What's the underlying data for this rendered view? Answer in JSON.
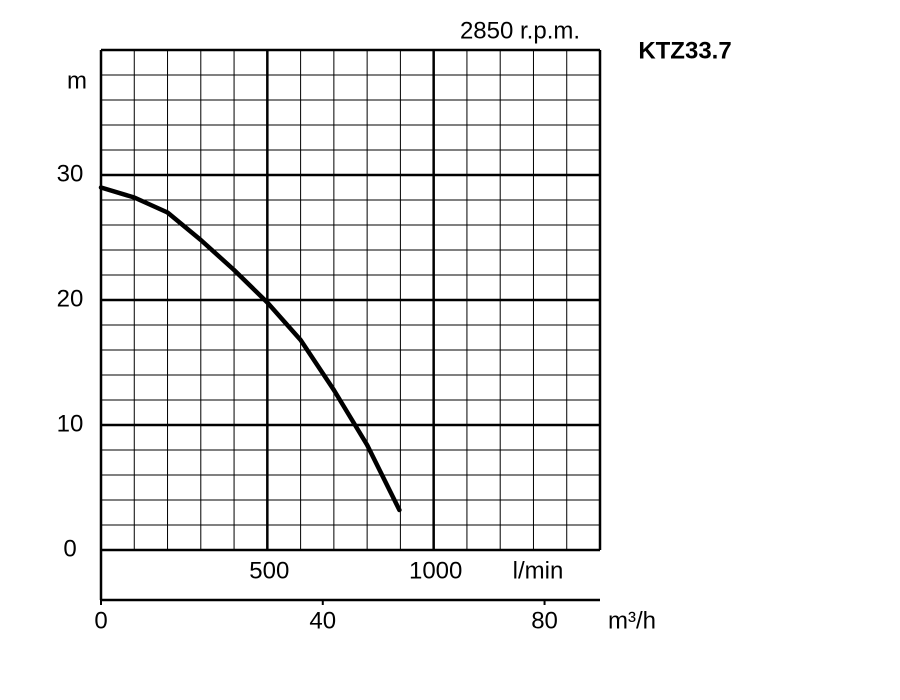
{
  "chart_data": {
    "type": "line",
    "title": "KTZ33.7",
    "subtitle": "2850 r.p.m.",
    "y_label": "m",
    "x_label": "l/min",
    "x2_label": "m³/h",
    "xlim": [
      0,
      1500
    ],
    "ylim": [
      0,
      40
    ],
    "xticks": [
      500,
      1000
    ],
    "yticks": [
      0,
      10,
      20,
      30
    ],
    "xgrid": [
      0,
      100,
      200,
      300,
      400,
      500,
      600,
      700,
      800,
      900,
      1000,
      1100,
      1200,
      1300,
      1400,
      1500
    ],
    "ygrid": [
      0,
      2,
      4,
      6,
      8,
      10,
      12,
      14,
      16,
      18,
      20,
      22,
      24,
      26,
      28,
      30,
      32,
      34,
      36,
      38,
      40
    ],
    "x2lim": [
      0,
      90
    ],
    "x2ticks": [
      0,
      40,
      80
    ],
    "grid": true,
    "series": [
      {
        "name": "KTZ33.7",
        "color": "#000000",
        "x": [
          0,
          100,
          200,
          300,
          400,
          500,
          600,
          700,
          800,
          897
        ],
        "values": [
          29,
          28.2,
          27,
          24.8,
          22.4,
          19.8,
          16.8,
          12.8,
          8.4,
          3.2
        ]
      }
    ]
  }
}
